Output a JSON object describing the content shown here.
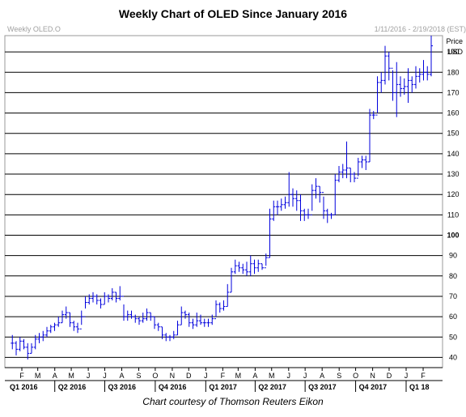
{
  "title": "Weekly Chart of OLED Since January 2016",
  "credit": "Chart courtesy of Thomson Reuters Eikon",
  "header": {
    "symbol": "Weekly OLED.O",
    "date_range": "1/11/2016 - 2/19/2018 (EST)"
  },
  "colors": {
    "bars": "#0000dd",
    "grid": "#000000",
    "frame": "#9a9a9a",
    "header_text": "#a0a0a0"
  },
  "chart_data": {
    "type": "ohlc",
    "title": "Weekly Chart of OLED Since January 2016",
    "ylabel": "Price",
    "yunit": "USD",
    "ylim": [
      35,
      198
    ],
    "yticks": [
      40,
      50,
      60,
      70,
      80,
      90,
      100,
      110,
      120,
      130,
      140,
      150,
      160,
      170,
      180,
      190
    ],
    "ytick_bold": 100,
    "grid": true,
    "month_ticks": [
      "F",
      "M",
      "A",
      "M",
      "J",
      "J",
      "A",
      "S",
      "O",
      "N",
      "D",
      "J",
      "F",
      "M",
      "A",
      "M",
      "J",
      "J",
      "A",
      "S",
      "O",
      "N",
      "D",
      "J",
      "F"
    ],
    "quarter_labels": [
      "Q1 2016",
      "Q2 2016",
      "Q3 2016",
      "Q4 2016",
      "Q1 2017",
      "Q2 2017",
      "Q3 2017",
      "Q4 2017",
      "Q1 18"
    ],
    "bars": [
      {
        "date": "2016-01-11",
        "h": 51,
        "l": 44,
        "c": 47
      },
      {
        "date": "2016-01-18",
        "h": 48,
        "l": 41,
        "c": 44
      },
      {
        "date": "2016-01-25",
        "h": 50,
        "l": 43,
        "c": 48
      },
      {
        "date": "2016-02-01",
        "h": 49,
        "l": 44,
        "c": 45
      },
      {
        "date": "2016-02-08",
        "h": 47,
        "l": 39,
        "c": 42
      },
      {
        "date": "2016-02-15",
        "h": 47,
        "l": 42,
        "c": 45
      },
      {
        "date": "2016-02-22",
        "h": 51,
        "l": 44,
        "c": 49
      },
      {
        "date": "2016-02-29",
        "h": 52,
        "l": 47,
        "c": 50
      },
      {
        "date": "2016-03-07",
        "h": 53,
        "l": 48,
        "c": 51
      },
      {
        "date": "2016-03-14",
        "h": 55,
        "l": 50,
        "c": 53
      },
      {
        "date": "2016-03-21",
        "h": 56,
        "l": 52,
        "c": 55
      },
      {
        "date": "2016-03-28",
        "h": 57,
        "l": 53,
        "c": 56
      },
      {
        "date": "2016-04-04",
        "h": 60,
        "l": 55,
        "c": 57
      },
      {
        "date": "2016-04-11",
        "h": 63,
        "l": 57,
        "c": 61
      },
      {
        "date": "2016-04-18",
        "h": 65,
        "l": 59,
        "c": 62
      },
      {
        "date": "2016-04-25",
        "h": 62,
        "l": 55,
        "c": 57
      },
      {
        "date": "2016-05-02",
        "h": 58,
        "l": 53,
        "c": 55
      },
      {
        "date": "2016-05-09",
        "h": 57,
        "l": 52,
        "c": 54
      },
      {
        "date": "2016-05-16",
        "h": 63,
        "l": 56,
        "c": 60
      },
      {
        "date": "2016-05-23",
        "h": 70,
        "l": 64,
        "c": 67
      },
      {
        "date": "2016-05-30",
        "h": 71,
        "l": 66,
        "c": 69
      },
      {
        "date": "2016-06-06",
        "h": 72,
        "l": 67,
        "c": 70
      },
      {
        "date": "2016-06-13",
        "h": 71,
        "l": 66,
        "c": 68
      },
      {
        "date": "2016-06-20",
        "h": 69,
        "l": 64,
        "c": 66
      },
      {
        "date": "2016-06-27",
        "h": 72,
        "l": 66,
        "c": 70
      },
      {
        "date": "2016-07-04",
        "h": 71,
        "l": 67,
        "c": 69
      },
      {
        "date": "2016-07-11",
        "h": 74,
        "l": 68,
        "c": 72
      },
      {
        "date": "2016-07-18",
        "h": 72,
        "l": 67,
        "c": 69
      },
      {
        "date": "2016-07-25",
        "h": 75,
        "l": 68,
        "c": 70
      },
      {
        "date": "2016-08-01",
        "h": 66,
        "l": 58,
        "c": 60
      },
      {
        "date": "2016-08-08",
        "h": 63,
        "l": 58,
        "c": 61
      },
      {
        "date": "2016-08-15",
        "h": 63,
        "l": 59,
        "c": 60
      },
      {
        "date": "2016-08-22",
        "h": 61,
        "l": 57,
        "c": 59
      },
      {
        "date": "2016-08-29",
        "h": 60,
        "l": 56,
        "c": 58
      },
      {
        "date": "2016-09-05",
        "h": 62,
        "l": 57,
        "c": 59
      },
      {
        "date": "2016-09-12",
        "h": 64,
        "l": 58,
        "c": 62
      },
      {
        "date": "2016-09-19",
        "h": 62,
        "l": 58,
        "c": 60
      },
      {
        "date": "2016-09-26",
        "h": 60,
        "l": 54,
        "c": 56
      },
      {
        "date": "2016-10-03",
        "h": 57,
        "l": 53,
        "c": 55
      },
      {
        "date": "2016-10-10",
        "h": 55,
        "l": 49,
        "c": 51
      },
      {
        "date": "2016-10-17",
        "h": 52,
        "l": 48,
        "c": 50
      },
      {
        "date": "2016-10-24",
        "h": 51,
        "l": 48,
        "c": 50
      },
      {
        "date": "2016-10-31",
        "h": 53,
        "l": 49,
        "c": 51
      },
      {
        "date": "2016-11-07",
        "h": 58,
        "l": 51,
        "c": 56
      },
      {
        "date": "2016-11-14",
        "h": 65,
        "l": 56,
        "c": 62
      },
      {
        "date": "2016-11-21",
        "h": 63,
        "l": 59,
        "c": 61
      },
      {
        "date": "2016-11-28",
        "h": 62,
        "l": 55,
        "c": 57
      },
      {
        "date": "2016-12-05",
        "h": 59,
        "l": 54,
        "c": 56
      },
      {
        "date": "2016-12-12",
        "h": 62,
        "l": 55,
        "c": 58
      },
      {
        "date": "2016-12-19",
        "h": 61,
        "l": 56,
        "c": 57
      },
      {
        "date": "2016-12-26",
        "h": 59,
        "l": 55,
        "c": 57
      },
      {
        "date": "2017-01-02",
        "h": 59,
        "l": 55,
        "c": 57
      },
      {
        "date": "2017-01-09",
        "h": 61,
        "l": 56,
        "c": 59
      },
      {
        "date": "2017-01-16",
        "h": 68,
        "l": 60,
        "c": 66
      },
      {
        "date": "2017-01-23",
        "h": 67,
        "l": 62,
        "c": 64
      },
      {
        "date": "2017-01-30",
        "h": 68,
        "l": 63,
        "c": 65
      },
      {
        "date": "2017-02-06",
        "h": 76,
        "l": 65,
        "c": 72
      },
      {
        "date": "2017-02-13",
        "h": 84,
        "l": 72,
        "c": 82
      },
      {
        "date": "2017-02-20",
        "h": 88,
        "l": 81,
        "c": 85
      },
      {
        "date": "2017-02-27",
        "h": 87,
        "l": 82,
        "c": 84
      },
      {
        "date": "2017-03-06",
        "h": 86,
        "l": 81,
        "c": 83
      },
      {
        "date": "2017-03-13",
        "h": 87,
        "l": 80,
        "c": 82
      },
      {
        "date": "2017-03-20",
        "h": 90,
        "l": 80,
        "c": 86
      },
      {
        "date": "2017-03-27",
        "h": 88,
        "l": 81,
        "c": 84
      },
      {
        "date": "2017-04-03",
        "h": 88,
        "l": 82,
        "c": 86
      },
      {
        "date": "2017-04-10",
        "h": 86,
        "l": 83,
        "c": 84
      },
      {
        "date": "2017-04-17",
        "h": 91,
        "l": 85,
        "c": 89
      },
      {
        "date": "2017-04-24",
        "h": 113,
        "l": 89,
        "c": 108
      },
      {
        "date": "2017-05-01",
        "h": 117,
        "l": 107,
        "c": 114
      },
      {
        "date": "2017-05-08",
        "h": 117,
        "l": 110,
        "c": 114
      },
      {
        "date": "2017-05-15",
        "h": 118,
        "l": 112,
        "c": 115
      },
      {
        "date": "2017-05-22",
        "h": 119,
        "l": 113,
        "c": 116
      },
      {
        "date": "2017-05-29",
        "h": 131,
        "l": 114,
        "c": 120
      },
      {
        "date": "2017-06-05",
        "h": 123,
        "l": 114,
        "c": 118
      },
      {
        "date": "2017-06-12",
        "h": 122,
        "l": 112,
        "c": 117
      },
      {
        "date": "2017-06-19",
        "h": 120,
        "l": 107,
        "c": 112
      },
      {
        "date": "2017-06-26",
        "h": 113,
        "l": 107,
        "c": 110
      },
      {
        "date": "2017-07-03",
        "h": 113,
        "l": 108,
        "c": 110
      },
      {
        "date": "2017-07-10",
        "h": 125,
        "l": 112,
        "c": 122
      },
      {
        "date": "2017-07-17",
        "h": 128,
        "l": 118,
        "c": 124
      },
      {
        "date": "2017-07-24",
        "h": 124,
        "l": 116,
        "c": 121
      },
      {
        "date": "2017-07-31",
        "h": 119,
        "l": 108,
        "c": 112
      },
      {
        "date": "2017-08-07",
        "h": 113,
        "l": 106,
        "c": 110
      },
      {
        "date": "2017-08-14",
        "h": 111,
        "l": 108,
        "c": 110
      },
      {
        "date": "2017-08-21",
        "h": 130,
        "l": 110,
        "c": 127
      },
      {
        "date": "2017-08-28",
        "h": 134,
        "l": 126,
        "c": 131
      },
      {
        "date": "2017-09-04",
        "h": 135,
        "l": 128,
        "c": 132
      },
      {
        "date": "2017-09-11",
        "h": 146,
        "l": 128,
        "c": 133
      },
      {
        "date": "2017-09-18",
        "h": 133,
        "l": 126,
        "c": 130
      },
      {
        "date": "2017-09-25",
        "h": 131,
        "l": 126,
        "c": 128
      },
      {
        "date": "2017-10-02",
        "h": 138,
        "l": 129,
        "c": 136
      },
      {
        "date": "2017-10-09",
        "h": 139,
        "l": 133,
        "c": 137
      },
      {
        "date": "2017-10-16",
        "h": 139,
        "l": 132,
        "c": 136
      },
      {
        "date": "2017-10-23",
        "h": 162,
        "l": 136,
        "c": 159
      },
      {
        "date": "2017-10-30",
        "h": 161,
        "l": 157,
        "c": 159
      },
      {
        "date": "2017-11-06",
        "h": 178,
        "l": 160,
        "c": 175
      },
      {
        "date": "2017-11-13",
        "h": 180,
        "l": 170,
        "c": 176
      },
      {
        "date": "2017-11-20",
        "h": 193,
        "l": 174,
        "c": 188
      },
      {
        "date": "2017-11-27",
        "h": 190,
        "l": 176,
        "c": 182
      },
      {
        "date": "2017-12-04",
        "h": 181,
        "l": 166,
        "c": 170
      },
      {
        "date": "2017-12-11",
        "h": 185,
        "l": 158,
        "c": 174
      },
      {
        "date": "2017-12-18",
        "h": 178,
        "l": 168,
        "c": 172
      },
      {
        "date": "2017-12-25",
        "h": 177,
        "l": 169,
        "c": 173
      },
      {
        "date": "2018-01-01",
        "h": 182,
        "l": 165,
        "c": 176
      },
      {
        "date": "2018-01-08",
        "h": 178,
        "l": 170,
        "c": 174
      },
      {
        "date": "2018-01-15",
        "h": 183,
        "l": 172,
        "c": 178
      },
      {
        "date": "2018-01-22",
        "h": 182,
        "l": 175,
        "c": 179
      },
      {
        "date": "2018-01-29",
        "h": 186,
        "l": 176,
        "c": 180
      },
      {
        "date": "2018-02-05",
        "h": 183,
        "l": 176,
        "c": 179
      },
      {
        "date": "2018-02-12",
        "h": 198,
        "l": 178,
        "c": 193
      }
    ]
  }
}
